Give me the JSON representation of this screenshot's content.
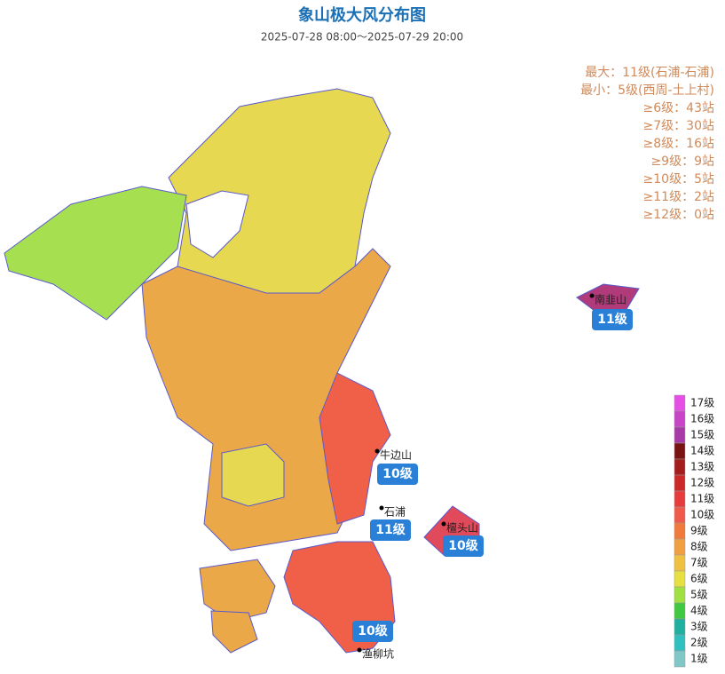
{
  "title": "象山极大风分布图",
  "subtitle": "2025-07-28  08:00～2025-07-29 20:00",
  "stats": [
    "最大：11级(石浦-石浦)",
    "最小：5级(西周-土上村)",
    "≥6级：43站",
    "≥7级：30站",
    "≥8级：16站",
    "≥9级：9站",
    "≥10级：5站",
    "≥11级：2站",
    "≥12级：0站"
  ],
  "stations": [
    {
      "name": "南韭山",
      "badge": "11级"
    },
    {
      "name": "牛边山",
      "badge": "10级"
    },
    {
      "name": "石浦",
      "badge": "11级"
    },
    {
      "name": "檀头山",
      "badge": "10级"
    },
    {
      "name": "渔柳坑",
      "badge": "10级"
    }
  ],
  "legend": [
    {
      "label": "17级",
      "color": "#e64fe6"
    },
    {
      "label": "16级",
      "color": "#c845c8"
    },
    {
      "label": "15级",
      "color": "#a83aa8"
    },
    {
      "label": "14级",
      "color": "#7a1414"
    },
    {
      "label": "13级",
      "color": "#a51e1e"
    },
    {
      "label": "12级",
      "color": "#cc2a2a"
    },
    {
      "label": "11级",
      "color": "#e63c3c"
    },
    {
      "label": "10级",
      "color": "#f05a4a"
    },
    {
      "label": "9级",
      "color": "#f07a3c"
    },
    {
      "label": "8级",
      "color": "#f0a040"
    },
    {
      "label": "7级",
      "color": "#f0c040"
    },
    {
      "label": "6级",
      "color": "#e6e040"
    },
    {
      "label": "5级",
      "color": "#a0e040"
    },
    {
      "label": "4级",
      "color": "#40c840"
    },
    {
      "label": "3级",
      "color": "#20b0a0"
    },
    {
      "label": "2级",
      "color": "#30c0c0"
    },
    {
      "label": "1级",
      "color": "#80c8c8"
    }
  ]
}
